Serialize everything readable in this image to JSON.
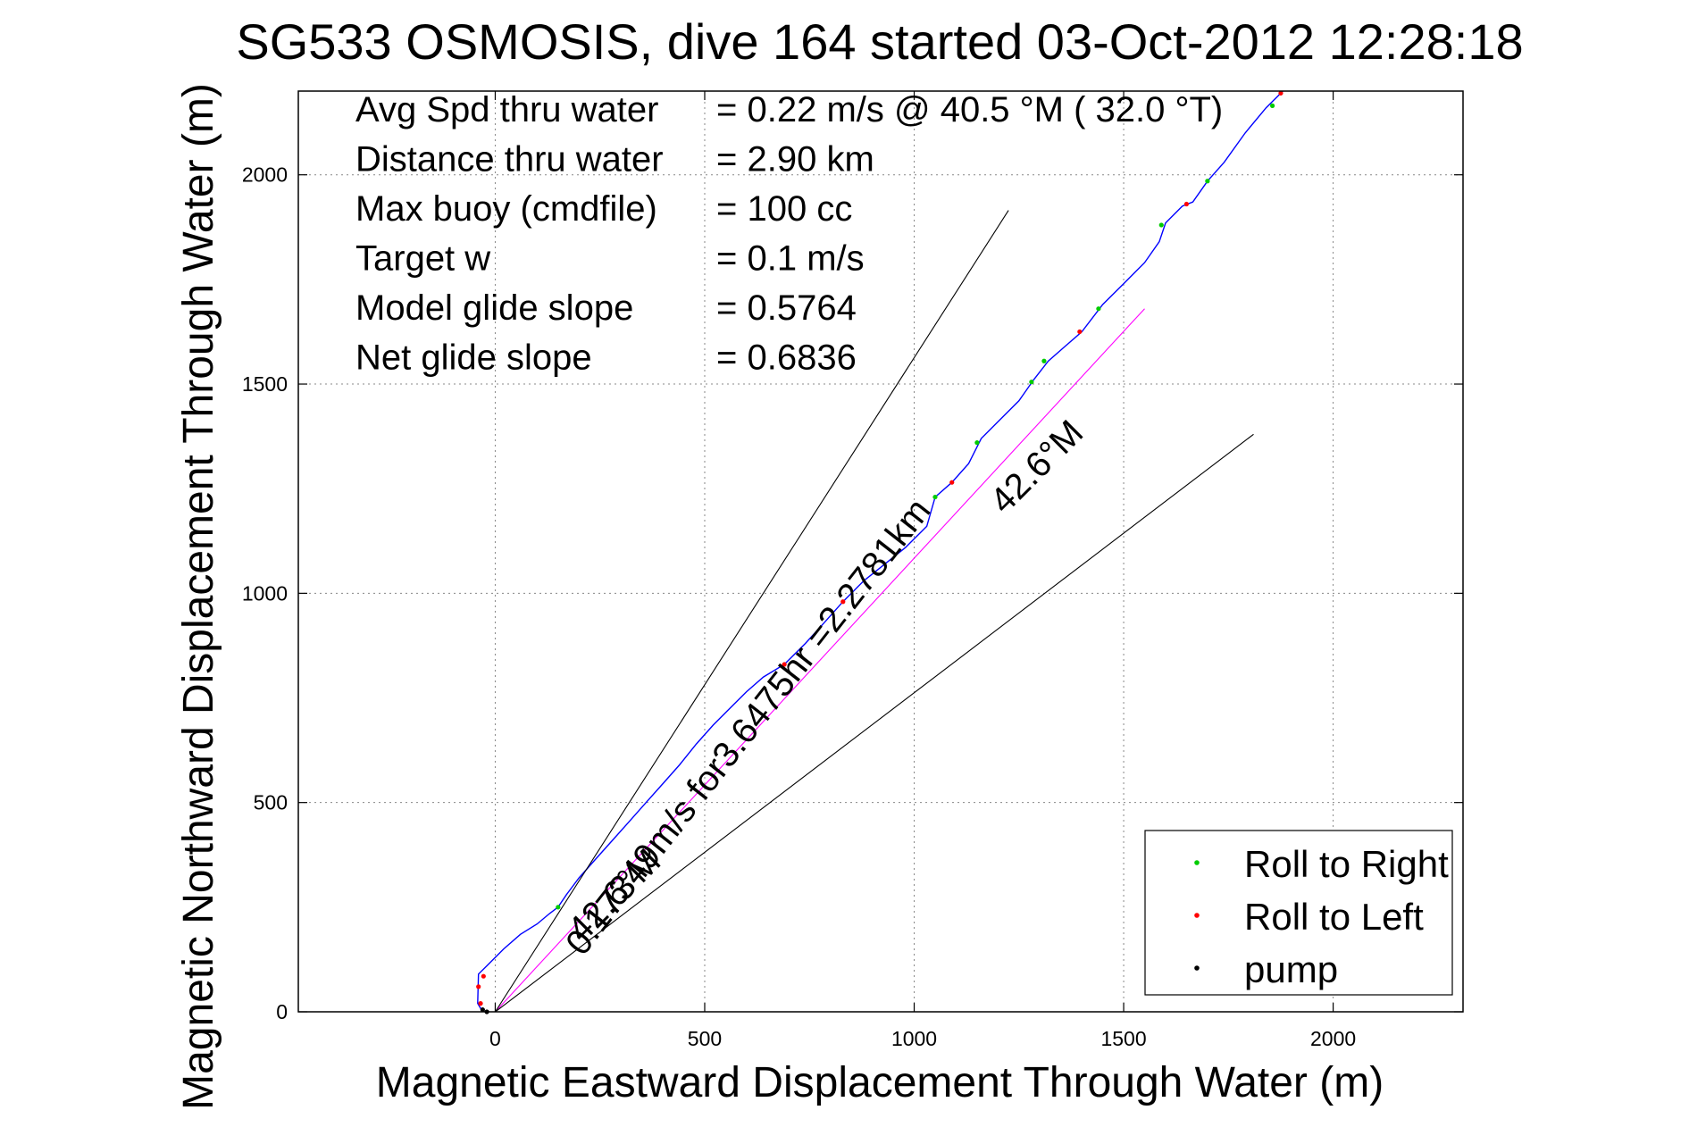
{
  "chart_data": {
    "type": "line",
    "title": "SG533 OSMOSIS, dive 164 started 03-Oct-2012 12:28:18",
    "xlabel": "Magnetic Eastward Displacement Through Water (m)",
    "ylabel": "Magnetic Northward Displacement Through Water (m)",
    "xlim": [
      -470,
      2310
    ],
    "ylim": [
      0,
      2200
    ],
    "xticks": [
      0,
      500,
      1000,
      1500,
      2000
    ],
    "yticks": [
      0,
      500,
      1000,
      1500,
      2000
    ],
    "xtick_labels": [
      "0",
      "500",
      "1000",
      "1500",
      "2000"
    ],
    "ytick_labels": [
      "0",
      "500",
      "1000",
      "1500",
      "2000"
    ],
    "grid": true,
    "legend_position": "bottom-right",
    "info_lines": [
      {
        "label": "Avg Spd thru water",
        "value": "=  0.22 m/s @  40.5 °M ( 32.0 °T)"
      },
      {
        "label": "Distance thru water",
        "value": "=  2.90 km"
      },
      {
        "label": "Max buoy (cmdfile)",
        "value": "= 100 cc"
      },
      {
        "label": "Target w",
        "value": "= 0.1 m/s"
      },
      {
        "label": "Model glide slope",
        "value": "= 0.5764"
      },
      {
        "label": "Net glide slope",
        "value": "= 0.6836"
      }
    ],
    "annotations": {
      "cone_label": "42.6°M",
      "track_label": "42.6°M",
      "speed_label": "0.17349m/s for3.6475hr =2.2781km"
    },
    "series": [
      {
        "name": "track",
        "color": "#0000ff",
        "x": [
          -30,
          -42,
          -40,
          -20,
          20,
          60,
          100,
          130,
          150,
          170,
          200,
          240,
          280,
          320,
          360,
          400,
          440,
          480,
          520,
          560,
          600,
          640,
          690,
          740,
          790,
          830,
          880,
          930,
          980,
          1030,
          1050,
          1090,
          1130,
          1160,
          1200,
          1250,
          1285,
          1320,
          1360,
          1400,
          1450,
          1500,
          1550,
          1585,
          1600,
          1640,
          1665,
          1700,
          1740,
          1790,
          1840,
          1880
        ],
        "y": [
          0,
          20,
          90,
          110,
          150,
          185,
          210,
          235,
          250,
          280,
          320,
          365,
          410,
          455,
          500,
          545,
          590,
          640,
          685,
          725,
          765,
          800,
          830,
          880,
          935,
          980,
          1030,
          1070,
          1110,
          1160,
          1230,
          1265,
          1310,
          1370,
          1410,
          1460,
          1510,
          1555,
          1590,
          1625,
          1690,
          1740,
          1790,
          1840,
          1885,
          1925,
          1935,
          1985,
          2030,
          2100,
          2160,
          2200
        ]
      },
      {
        "name": "net_track",
        "color": "#ff00ff",
        "x": [
          0,
          1550
        ],
        "y": [
          0,
          1680
        ]
      },
      {
        "name": "cone_upper",
        "color": "#000000",
        "x": [
          0,
          1225
        ],
        "y": [
          0,
          1915
        ]
      },
      {
        "name": "cone_lower",
        "color": "#000000",
        "x": [
          0,
          1810
        ],
        "y": [
          0,
          1380
        ]
      }
    ],
    "markers": [
      {
        "name": "Roll to Right",
        "color": "#00cc00",
        "points": [
          [
            150,
            250
          ],
          [
            1050,
            1230
          ],
          [
            1150,
            1360
          ],
          [
            1280,
            1505
          ],
          [
            1310,
            1555
          ],
          [
            1440,
            1680
          ],
          [
            1590,
            1880
          ],
          [
            1700,
            1985
          ],
          [
            1855,
            2165
          ]
        ]
      },
      {
        "name": "Roll to Left",
        "color": "#ff0000",
        "points": [
          [
            -35,
            20
          ],
          [
            -40,
            60
          ],
          [
            -28,
            85
          ],
          [
            690,
            830
          ],
          [
            830,
            980
          ],
          [
            1090,
            1265
          ],
          [
            1395,
            1625
          ],
          [
            1650,
            1930
          ],
          [
            1875,
            2195
          ]
        ]
      },
      {
        "name": "pump",
        "color": "#000000",
        "points": [
          [
            -30,
            5
          ],
          [
            -20,
            0
          ]
        ]
      }
    ],
    "legend": [
      {
        "label": "Roll to Right",
        "color": "#00cc00"
      },
      {
        "label": "Roll to Left",
        "color": "#ff0000"
      },
      {
        "label": "pump",
        "color": "#000000"
      }
    ]
  }
}
